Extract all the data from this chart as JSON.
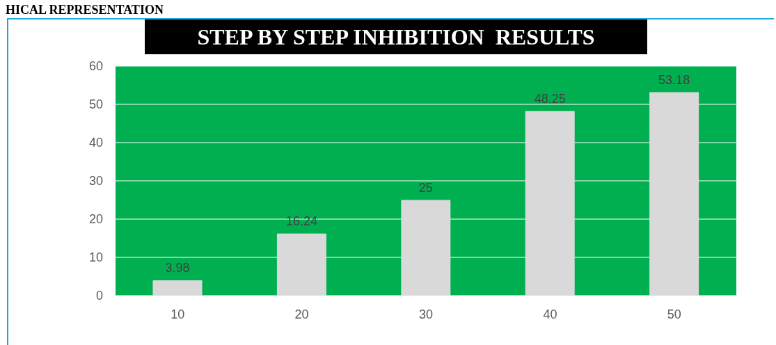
{
  "chart_data": {
    "type": "bar",
    "title": "STEP BY STEP INHIBITION  RESULTS",
    "annotations": [
      "HICAL REPRESENTATION"
    ],
    "categories": [
      "10",
      "20",
      "30",
      "40",
      "50"
    ],
    "values": [
      3.98,
      16.24,
      25,
      48.25,
      53.18
    ],
    "color": "#d9d9d9",
    "ylim": [
      0,
      60
    ],
    "yticks": [
      0,
      10,
      20,
      30,
      40,
      50,
      60
    ],
    "grid": "y",
    "data_labels": true
  }
}
